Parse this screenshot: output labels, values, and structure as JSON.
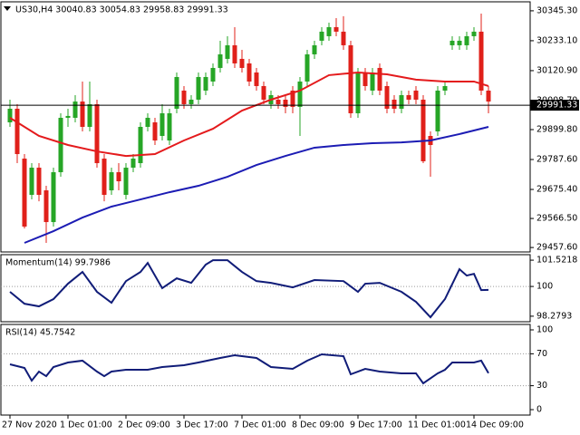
{
  "chart_data": [
    {
      "type": "candlestick",
      "title": "US30,H4  30040.83 30054.83 29958.83 29991.33",
      "categories": [
        "27 Nov 2020",
        null,
        null,
        null,
        null,
        null,
        null,
        null,
        "1 Dec 01:00",
        null,
        null,
        null,
        null,
        null,
        null,
        null,
        "2 Dec 09:00",
        null,
        null,
        null,
        null,
        null,
        null,
        null,
        "3 Dec 17:00",
        null,
        null,
        null,
        null,
        null,
        null,
        null,
        "7 Dec 01:00",
        null,
        null,
        null,
        null,
        null,
        null,
        null,
        "8 Dec 09:00",
        null,
        null,
        null,
        null,
        null,
        null,
        null,
        "9 Dec 17:00",
        null,
        null,
        null,
        null,
        null,
        null,
        null,
        "11 Dec 01:00",
        null,
        null,
        null,
        null,
        null,
        null,
        null,
        "14 Dec 09:00",
        null,
        null
      ],
      "open": [
        29927,
        29978,
        29791,
        29655,
        29757,
        29672,
        29553,
        29740,
        29944,
        29944,
        30005,
        29910,
        29995,
        29791,
        29672,
        29740,
        29655,
        29757,
        29774,
        29910,
        29927,
        29876,
        29859,
        29978,
        30046,
        29995,
        30012,
        30046,
        30080,
        30131,
        30165,
        30216,
        30165,
        30148,
        30114,
        30063,
        29995,
        30012,
        30012,
        30046,
        29985,
        30080,
        30182,
        30233,
        30250,
        30284,
        30267,
        30216,
        29961,
        30114,
        30046,
        30131,
        30063,
        30012,
        29978,
        30029,
        30046,
        30012,
        29876,
        29893,
        30046,
        30216,
        30216,
        30216,
        30250,
        30267,
        30046
      ],
      "high": [
        30012,
        29995,
        29808,
        29774,
        29774,
        29689,
        29757,
        29961,
        29978,
        30029,
        30080,
        30080,
        30012,
        29808,
        29757,
        29774,
        29774,
        29808,
        29927,
        29961,
        29944,
        29995,
        29978,
        30114,
        30063,
        30029,
        30114,
        30114,
        30148,
        30233,
        30250,
        30284,
        30199,
        30165,
        30131,
        30080,
        30046,
        30029,
        30029,
        30063,
        30097,
        30199,
        30233,
        30284,
        30301,
        30318,
        30325,
        30233,
        30131,
        30131,
        30131,
        30148,
        30080,
        30029,
        30046,
        30046,
        30063,
        30029,
        29893,
        30063,
        30080,
        30250,
        30250,
        30267,
        30284,
        30335,
        30063
      ],
      "low": [
        29910,
        29774,
        29529,
        29638,
        29631,
        29475,
        29536,
        29723,
        29910,
        29927,
        29893,
        29893,
        29757,
        29631,
        29655,
        29672,
        29638,
        29740,
        29757,
        29893,
        29842,
        29859,
        29842,
        29961,
        29978,
        29978,
        29995,
        30029,
        30063,
        30114,
        30148,
        30131,
        30114,
        30063,
        30046,
        29995,
        29978,
        29978,
        29961,
        29961,
        29876,
        30063,
        30165,
        30216,
        30233,
        30250,
        30199,
        29944,
        29944,
        30046,
        30029,
        30029,
        29961,
        29961,
        29961,
        29995,
        29995,
        29774,
        29723,
        29876,
        30029,
        30199,
        30199,
        30199,
        30233,
        30029,
        29961
      ],
      "close": [
        29978,
        29808,
        29536,
        29757,
        29655,
        29553,
        29740,
        29944,
        29951,
        30005,
        29910,
        29995,
        29774,
        29655,
        29740,
        29706,
        29757,
        29791,
        29910,
        29944,
        29859,
        29961,
        29961,
        30097,
        29995,
        30012,
        30097,
        30097,
        30131,
        30182,
        30216,
        30148,
        30131,
        30080,
        30063,
        30012,
        30029,
        29995,
        29985,
        29985,
        30080,
        30182,
        30216,
        30267,
        30284,
        30267,
        30216,
        29961,
        30114,
        30063,
        30114,
        30046,
        29978,
        29978,
        30029,
        30012,
        30012,
        29781,
        29842,
        30046,
        30063,
        30233,
        30233,
        30250,
        30267,
        30046,
        30005
      ],
      "up_color": "#26a626",
      "down_color": "#e0201a",
      "series": [
        {
          "color": "#e41a1c",
          "x": [
            0,
            4,
            8,
            12,
            16,
            20,
            24,
            28,
            32,
            36,
            40,
            44,
            48,
            52,
            56,
            60,
            64,
            66
          ],
          "values": [
            29944,
            29876,
            29842,
            29818,
            29801,
            29808,
            29859,
            29903,
            29971,
            30012,
            30046,
            30104,
            30114,
            30107,
            30087,
            30080,
            30080,
            30063
          ]
        },
        {
          "color": "#1c1cb4",
          "x": [
            2,
            6,
            10,
            14,
            18,
            22,
            26,
            30,
            34,
            38,
            42,
            46,
            50,
            54,
            58,
            62,
            66
          ],
          "values": [
            29475,
            29519,
            29570,
            29611,
            29638,
            29665,
            29689,
            29723,
            29767,
            29801,
            29832,
            29842,
            29849,
            29852,
            29859,
            29883,
            29910
          ]
        }
      ],
      "current_price": {
        "value": 29991.33,
        "label": "29991.33"
      },
      "ylim": [
        29441,
        30379
      ],
      "yticks": [
        {
          "value": 30345.3,
          "label": "30345.30"
        },
        {
          "value": 30233.1,
          "label": "30233.10"
        },
        {
          "value": 30120.9,
          "label": "30120.90"
        },
        {
          "value": 30008.7,
          "label": "30008.70"
        },
        {
          "value": 29899.8,
          "label": "29899.80"
        },
        {
          "value": 29787.6,
          "label": "29787.60"
        },
        {
          "value": 29675.4,
          "label": "29675.40"
        },
        {
          "value": 29566.5,
          "label": "29566.50"
        },
        {
          "value": 29457.6,
          "label": "29457.60"
        }
      ]
    },
    {
      "type": "line",
      "title": "Momentum(14) 99.7986",
      "series": [
        {
          "color": "#101c78",
          "x": [
            0,
            2,
            4,
            6,
            8,
            10,
            12,
            14,
            16,
            18,
            19,
            21,
            23,
            25,
            27,
            28,
            30,
            32,
            34,
            36,
            39,
            42,
            46,
            48,
            49,
            51,
            54,
            56,
            58,
            60,
            62,
            63,
            64,
            65,
            66
          ],
          "values": [
            99.69,
            99.0,
            98.85,
            99.27,
            100.16,
            100.84,
            99.69,
            99.06,
            100.31,
            100.84,
            101.36,
            99.9,
            100.47,
            100.21,
            101.26,
            101.52,
            101.52,
            100.84,
            100.31,
            100.21,
            99.95,
            100.37,
            100.31,
            99.69,
            100.16,
            100.21,
            99.69,
            99.11,
            98.22,
            99.27,
            101.0,
            100.63,
            100.73,
            99.79,
            99.8
          ]
        }
      ],
      "levels": [
        100
      ],
      "ylim": [
        97.96,
        101.84
      ],
      "yticks": [
        101.5218,
        100,
        98.2793
      ]
    },
    {
      "type": "line",
      "title": "RSI(14) 45.7542",
      "series": [
        {
          "color": "#101c78",
          "x": [
            0,
            2,
            3,
            4,
            5,
            6,
            8,
            10,
            12,
            13,
            14,
            16,
            19,
            21,
            24,
            26,
            29,
            31,
            34,
            36,
            39,
            41,
            43,
            46,
            47,
            49,
            51,
            54,
            56,
            57,
            59,
            60,
            61,
            64,
            65,
            66
          ],
          "values": [
            56.8,
            52.3,
            36.4,
            47.7,
            42.0,
            53.4,
            59.1,
            61.4,
            47.7,
            42.0,
            47.7,
            50.0,
            50.0,
            53.4,
            55.7,
            59.1,
            64.8,
            68.2,
            64.8,
            53.4,
            51.1,
            61.4,
            69.3,
            67.0,
            44.3,
            51.1,
            47.7,
            45.5,
            45.5,
            33.0,
            45.5,
            50.0,
            59.1,
            59.1,
            61.4,
            45.75
          ]
        }
      ],
      "levels": [
        70,
        30
      ],
      "ylim": [
        -6.8,
        106.8
      ],
      "yticks": [
        100,
        70,
        30,
        0
      ]
    }
  ]
}
